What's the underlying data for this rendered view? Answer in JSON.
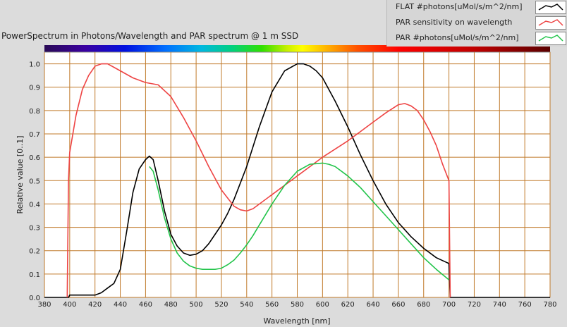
{
  "chart_data": {
    "type": "line",
    "title": "PowerSpectrum in Photons/Wavelength and PAR spectrum @ 1 m SSD",
    "xlabel": "Wavelength [nm]",
    "ylabel": "Relative value [0..1]",
    "xlim": [
      380,
      780
    ],
    "ylim": [
      0,
      1.05
    ],
    "xticks": [
      "380",
      "400",
      "420",
      "440",
      "460",
      "480",
      "500",
      "520",
      "540",
      "560",
      "580",
      "600",
      "620",
      "640",
      "660",
      "680",
      "700",
      "720",
      "740",
      "760",
      "780"
    ],
    "yticks": [
      "0.0",
      "0.1",
      "0.2",
      "0.3",
      "0.4",
      "0.5",
      "0.6",
      "0.7",
      "0.8",
      "0.9",
      "1.0"
    ],
    "grid": true,
    "legend_position": "top-right",
    "series": [
      {
        "name": "FLAT #photons[uMol/s/m^2/nm]",
        "color": "#000000",
        "x": [
          380,
          399,
          400,
          410,
          420,
          425,
          430,
          435,
          440,
          445,
          450,
          455,
          460,
          463,
          466,
          470,
          475,
          480,
          485,
          490,
          495,
          500,
          505,
          510,
          515,
          520,
          525,
          530,
          540,
          550,
          560,
          570,
          580,
          585,
          590,
          595,
          600,
          610,
          620,
          630,
          640,
          650,
          660,
          670,
          680,
          690,
          700,
          701,
          720,
          740,
          760,
          780
        ],
        "y": [
          0,
          0,
          0.01,
          0.01,
          0.01,
          0.02,
          0.04,
          0.06,
          0.12,
          0.28,
          0.45,
          0.55,
          0.59,
          0.605,
          0.59,
          0.5,
          0.37,
          0.27,
          0.22,
          0.19,
          0.18,
          0.185,
          0.2,
          0.23,
          0.27,
          0.31,
          0.36,
          0.42,
          0.56,
          0.73,
          0.88,
          0.97,
          1.0,
          1.0,
          0.99,
          0.97,
          0.94,
          0.84,
          0.73,
          0.61,
          0.5,
          0.4,
          0.32,
          0.26,
          0.21,
          0.17,
          0.145,
          0,
          0,
          0,
          0,
          0
        ]
      },
      {
        "name": "PAR sensitivity on wavelength",
        "color": "#ee4444",
        "x": [
          398,
          399,
          400,
          405,
          410,
          415,
          420,
          425,
          430,
          435,
          440,
          450,
          460,
          470,
          480,
          490,
          500,
          510,
          520,
          530,
          535,
          540,
          545,
          560,
          580,
          600,
          620,
          640,
          650,
          660,
          665,
          670,
          675,
          680,
          685,
          690,
          695,
          700,
          701
        ],
        "y": [
          0,
          0.5,
          0.62,
          0.78,
          0.89,
          0.95,
          0.99,
          1.0,
          1.0,
          0.985,
          0.97,
          0.94,
          0.92,
          0.91,
          0.86,
          0.77,
          0.67,
          0.56,
          0.46,
          0.39,
          0.375,
          0.37,
          0.38,
          0.44,
          0.52,
          0.6,
          0.67,
          0.75,
          0.79,
          0.825,
          0.83,
          0.82,
          0.8,
          0.76,
          0.71,
          0.65,
          0.57,
          0.5,
          0
        ]
      },
      {
        "name": "PAR #photons[uMol/s/m^2/nm]",
        "color": "#22c44a",
        "x": [
          463,
          466,
          470,
          475,
          480,
          485,
          490,
          495,
          500,
          505,
          510,
          515,
          520,
          525,
          530,
          535,
          540,
          545,
          550,
          560,
          570,
          580,
          590,
          600,
          605,
          610,
          620,
          630,
          640,
          650,
          660,
          670,
          680,
          690,
          700
        ],
        "y": [
          0.56,
          0.54,
          0.46,
          0.34,
          0.25,
          0.19,
          0.155,
          0.135,
          0.125,
          0.12,
          0.12,
          0.12,
          0.125,
          0.14,
          0.16,
          0.19,
          0.225,
          0.265,
          0.31,
          0.4,
          0.48,
          0.54,
          0.57,
          0.575,
          0.57,
          0.56,
          0.52,
          0.47,
          0.41,
          0.35,
          0.29,
          0.23,
          0.17,
          0.12,
          0.075
        ]
      }
    ]
  }
}
